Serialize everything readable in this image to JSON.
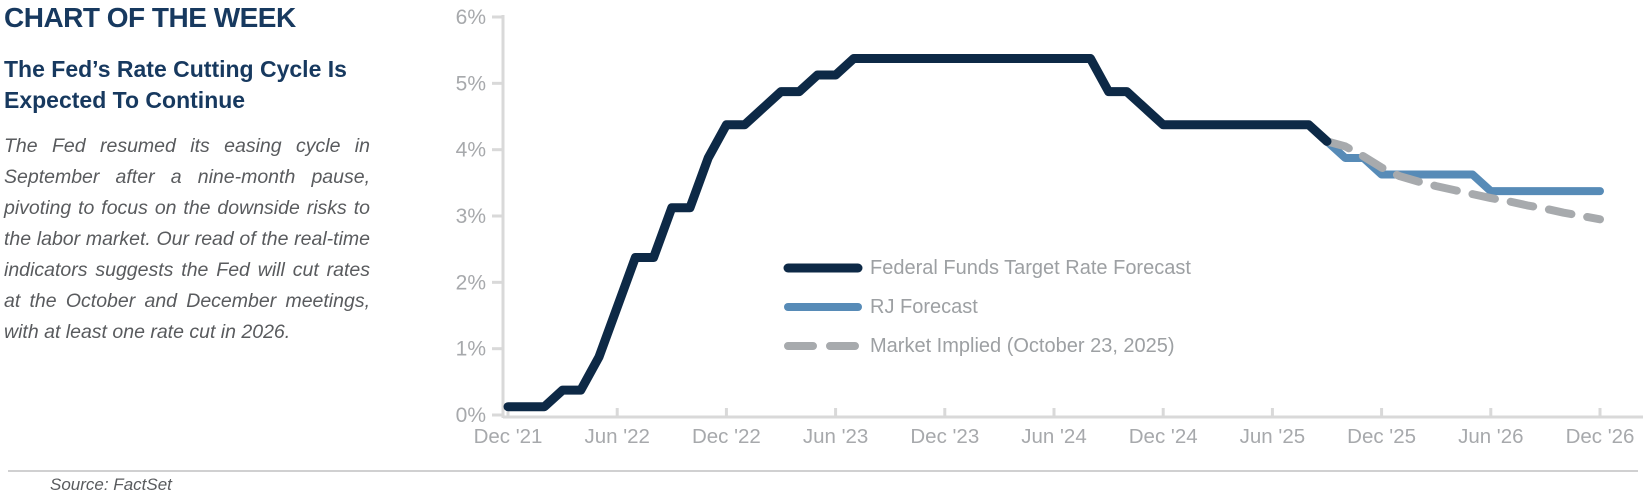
{
  "panel": {
    "kicker": "CHART OF THE WEEK",
    "title": "The Fed’s Rate Cutting Cycle Is Expected To Continue",
    "body": "The Fed resumed its easing cycle in September after a nine-month pause, pivoting to focus on the downside risks to the labor market. Our read of the real-time indicators suggests the Fed will cut rates at the October and December meetings, with at least one rate cut in 2026.",
    "source": "Source: FactSet"
  },
  "colors": {
    "navy": "#0d2946",
    "blue": "#578bb7",
    "gray": "#a7aaad",
    "heading": "#17395f",
    "body_text": "#595b5e",
    "axis_text": "#a7a9ac",
    "legend_text": "#9da0a3",
    "axis_line": "#d9d9d9",
    "divider": "#d0d0d1"
  },
  "chart_data": {
    "type": "line",
    "title": "",
    "xlabel": "",
    "ylabel": "",
    "ylim": [
      0,
      6
    ],
    "grid": false,
    "legend_position": "inside lower-center",
    "y_tick_labels": [
      "0%",
      "1%",
      "2%",
      "3%",
      "4%",
      "5%",
      "6%"
    ],
    "x_tick_labels": [
      "Dec '21",
      "Jun '22",
      "Dec '22",
      "Jun '23",
      "Dec '23",
      "Jun '24",
      "Dec '24",
      "Jun '25",
      "Dec '25",
      "Jun '26",
      "Dec '26"
    ],
    "x_tick_month_index": [
      0,
      6,
      12,
      18,
      24,
      30,
      36,
      42,
      48,
      54,
      60
    ],
    "x_axis_note": "monthly points, month 0 = Dec 2021, month 60 = Dec 2026",
    "series": [
      {
        "name": "Federal Funds Target Rate Forecast",
        "style": "solid",
        "color_key": "navy",
        "start_month_index": 0,
        "values_pct": [
          0.125,
          0.125,
          0.125,
          0.375,
          0.375,
          0.875,
          1.625,
          2.375,
          2.375,
          3.125,
          3.125,
          3.875,
          4.375,
          4.375,
          4.625,
          4.875,
          4.875,
          5.125,
          5.125,
          5.375,
          5.375,
          5.375,
          5.375,
          5.375,
          5.375,
          5.375,
          5.375,
          5.375,
          5.375,
          5.375,
          5.375,
          5.375,
          5.375,
          4.875,
          4.875,
          4.625,
          4.375,
          4.375,
          4.375,
          4.375,
          4.375,
          4.375,
          4.375,
          4.375,
          4.375,
          4.125
        ]
      },
      {
        "name": "RJ Forecast",
        "style": "solid",
        "color_key": "blue",
        "start_month_index": 45,
        "values_pct": [
          4.125,
          3.875,
          3.875,
          3.625,
          3.625,
          3.625,
          3.625,
          3.625,
          3.625,
          3.375,
          3.375,
          3.375,
          3.375,
          3.375,
          3.375,
          3.375
        ]
      },
      {
        "name": "Market Implied (October 23, 2025)",
        "style": "dashed",
        "color_key": "gray",
        "start_month_index": 45,
        "values_pct": [
          4.125,
          4.05,
          3.9,
          3.73,
          3.6,
          3.52,
          3.45,
          3.39,
          3.33,
          3.27,
          3.22,
          3.16,
          3.11,
          3.05,
          3.0,
          2.95
        ]
      }
    ]
  }
}
